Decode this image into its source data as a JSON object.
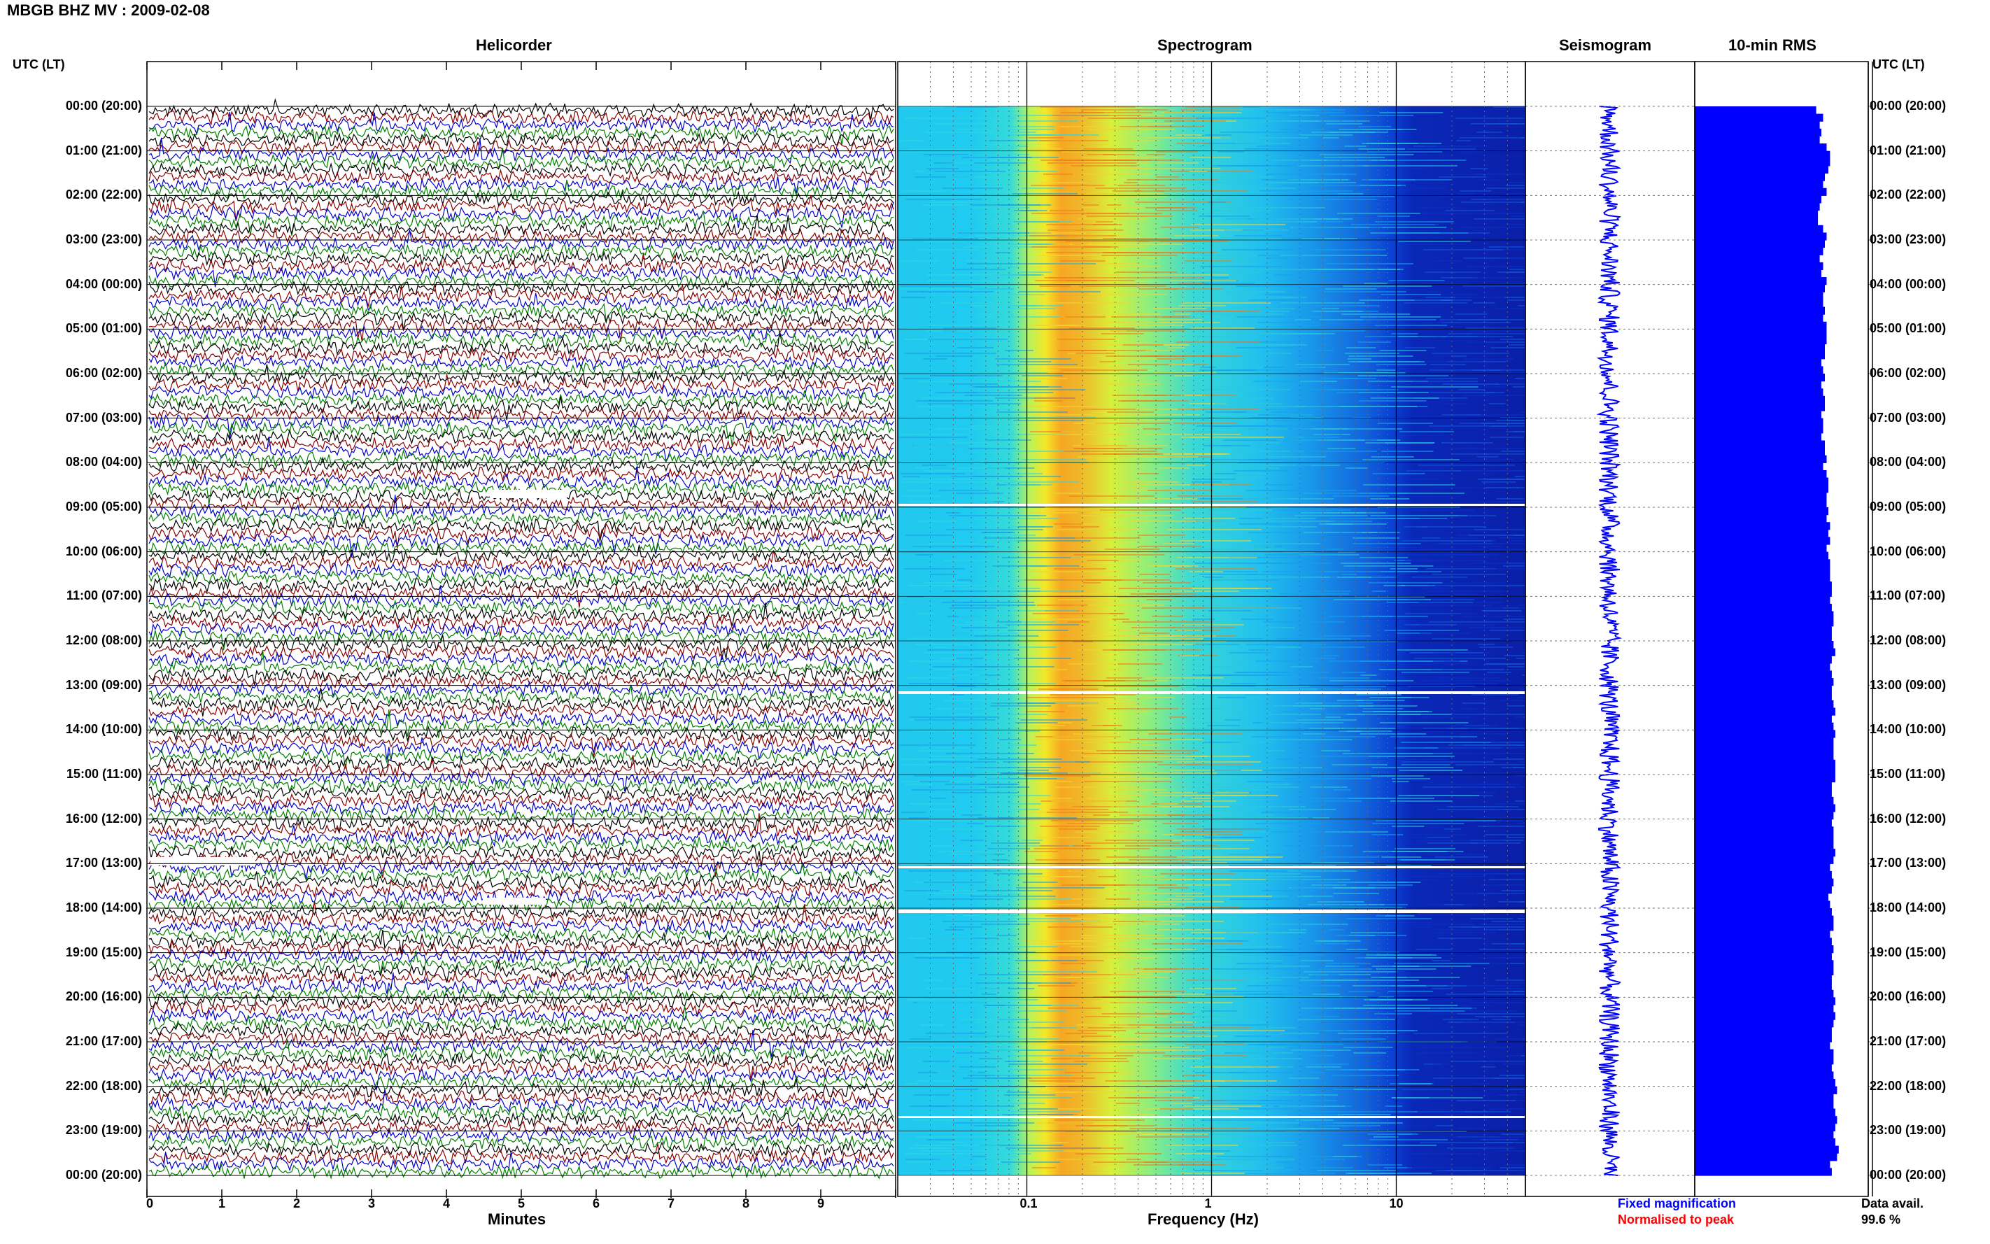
{
  "title": "MBGB BHZ MV : 2009-02-08",
  "panels": {
    "helicorder": "Helicorder",
    "spectrogram": "Spectrogram",
    "seismogram": "Seismogram",
    "rms": "10-min RMS"
  },
  "time_axis_label": "UTC (LT)",
  "time_labels": [
    "00:00 (20:00)",
    "01:00 (21:00)",
    "02:00 (22:00)",
    "03:00 (23:00)",
    "04:00 (00:00)",
    "05:00 (01:00)",
    "06:00 (02:00)",
    "07:00 (03:00)",
    "08:00 (04:00)",
    "09:00 (05:00)",
    "10:00 (06:00)",
    "11:00 (07:00)",
    "12:00 (08:00)",
    "13:00 (09:00)",
    "14:00 (10:00)",
    "15:00 (11:00)",
    "16:00 (12:00)",
    "17:00 (13:00)",
    "18:00 (14:00)",
    "19:00 (15:00)",
    "20:00 (16:00)",
    "21:00 (17:00)",
    "22:00 (18:00)",
    "23:00 (19:00)",
    "00:00 (20:00)"
  ],
  "helicorder_xlabel": "Minutes",
  "helicorder_ticks": [
    "0",
    "1",
    "2",
    "3",
    "4",
    "5",
    "6",
    "7",
    "8",
    "9"
  ],
  "spectrogram_xlabel": "Frequency (Hz)",
  "spectrogram_ticks": [
    "0.1",
    "1",
    "10"
  ],
  "legend": {
    "fixed": "Fixed magnification",
    "fixed_color": "#0000ff",
    "normalised": "Normalised to peak",
    "normalised_color": "#ff0000"
  },
  "data_avail": {
    "label": "Data avail.",
    "value": "99.6 %"
  },
  "colors": {
    "trace_cycle": [
      "#000000",
      "#8b0000",
      "#0000cd",
      "#008000"
    ],
    "seismogram": "#0000ff",
    "rms": "#0000ff"
  },
  "chart_data": {
    "type": "heatmap",
    "title": "MBGB BHZ MV : 2009-02-08",
    "time_range_utc": [
      "00:00",
      "24:00"
    ],
    "helicorder": {
      "xlim_minutes": [
        0,
        10
      ],
      "lines_per_hour": 6,
      "trace_colors": [
        "black",
        "darkred",
        "blue",
        "green"
      ]
    },
    "spectrogram": {
      "xscale": "log",
      "xlim_hz": [
        0.02,
        50
      ],
      "peak_band_hz": [
        0.18,
        0.5
      ],
      "colormap": "jet"
    },
    "data_gaps_utc": [
      "09:00",
      "13:00",
      "17:00",
      "18:00",
      "23:30"
    ],
    "rms_10min": [
      0.7,
      0.74,
      0.72,
      0.73,
      0.72,
      0.76,
      0.78,
      0.78,
      0.77,
      0.75,
      0.74,
      0.76,
      0.73,
      0.72,
      0.71,
      0.71,
      0.74,
      0.76,
      0.75,
      0.74,
      0.72,
      0.74,
      0.73,
      0.76,
      0.75,
      0.74,
      0.74,
      0.75,
      0.74,
      0.76,
      0.76,
      0.76,
      0.75,
      0.75,
      0.73,
      0.74,
      0.75,
      0.73,
      0.74,
      0.75,
      0.75,
      0.73,
      0.74,
      0.74,
      0.73,
      0.75,
      0.75,
      0.76,
      0.74,
      0.76,
      0.77,
      0.77,
      0.76,
      0.76,
      0.77,
      0.76,
      0.78,
      0.77,
      0.78,
      0.76,
      0.77,
      0.78,
      0.78,
      0.78,
      0.79,
      0.79,
      0.78,
      0.79,
      0.8,
      0.8,
      0.79,
      0.79,
      0.8,
      0.81,
      0.79,
      0.78,
      0.79,
      0.8,
      0.79,
      0.79,
      0.8,
      0.81,
      0.79,
      0.8,
      0.81,
      0.8,
      0.8,
      0.8,
      0.81,
      0.81,
      0.81,
      0.79,
      0.79,
      0.8,
      0.81,
      0.8,
      0.79,
      0.8,
      0.8,
      0.8,
      0.81,
      0.8,
      0.78,
      0.79,
      0.8,
      0.79,
      0.77,
      0.78,
      0.79,
      0.8,
      0.8,
      0.78,
      0.79,
      0.8,
      0.79,
      0.8,
      0.8,
      0.79,
      0.79,
      0.8,
      0.81,
      0.8,
      0.81,
      0.8,
      0.79,
      0.79,
      0.78,
      0.8,
      0.8,
      0.79,
      0.8,
      0.81,
      0.82,
      0.8,
      0.8,
      0.81,
      0.82,
      0.81,
      0.8,
      0.81,
      0.83,
      0.82,
      0.78,
      0.79
    ]
  }
}
